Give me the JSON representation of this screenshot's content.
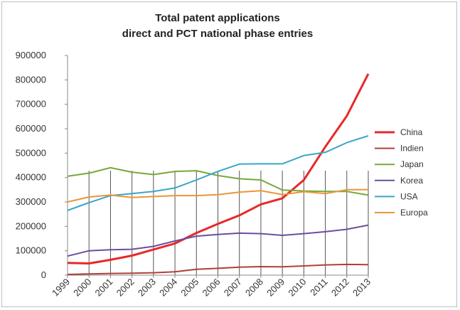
{
  "chart_data": {
    "type": "line",
    "title_lines": [
      "Total patent applications",
      "direct and PCT national phase entries"
    ],
    "x": [
      "1999",
      "2000",
      "2001",
      "2002",
      "2003",
      "2004",
      "2005",
      "2006",
      "2007",
      "2008",
      "2009",
      "2010",
      "2011",
      "2012",
      "2013"
    ],
    "y_ticks": [
      "0",
      "100000",
      "200000",
      "300000",
      "400000",
      "500000",
      "600000",
      "700000",
      "800000",
      "900000"
    ],
    "ylim": [
      0,
      900000
    ],
    "grid": "vertical drop lines at each year",
    "legend_position": "right",
    "series": [
      {
        "name": "China",
        "color": "#e8282b",
        "values": [
          50000,
          48000,
          63000,
          80000,
          105000,
          130000,
          173000,
          210000,
          245000,
          290000,
          315000,
          390000,
          526000,
          652000,
          825000
        ]
      },
      {
        "name": "Indien",
        "color": "#b0403b",
        "values": [
          3000,
          5000,
          7000,
          8000,
          10000,
          14000,
          24000,
          28000,
          33000,
          35000,
          34000,
          38000,
          42000,
          44000,
          43000
        ]
      },
      {
        "name": "Japan",
        "color": "#77a83a",
        "values": [
          405000,
          418000,
          440000,
          422000,
          412000,
          425000,
          428000,
          408000,
          395000,
          390000,
          349000,
          345000,
          343000,
          343000,
          328000
        ]
      },
      {
        "name": "Korea",
        "color": "#6a4f9c",
        "values": [
          78000,
          100000,
          104000,
          106000,
          118000,
          140000,
          160000,
          167000,
          172000,
          170000,
          163000,
          170000,
          178000,
          188000,
          205000
        ]
      },
      {
        "name": "USA",
        "color": "#3aa6c8",
        "values": [
          265000,
          297000,
          326000,
          334000,
          343000,
          357000,
          390000,
          425000,
          455000,
          456000,
          456000,
          490000,
          503000,
          543000,
          571000
        ]
      },
      {
        "name": "Europa",
        "color": "#e9963a",
        "values": [
          300000,
          320000,
          328000,
          318000,
          322000,
          326000,
          326000,
          330000,
          340000,
          346000,
          330000,
          342000,
          334000,
          350000,
          350000
        ]
      }
    ]
  }
}
